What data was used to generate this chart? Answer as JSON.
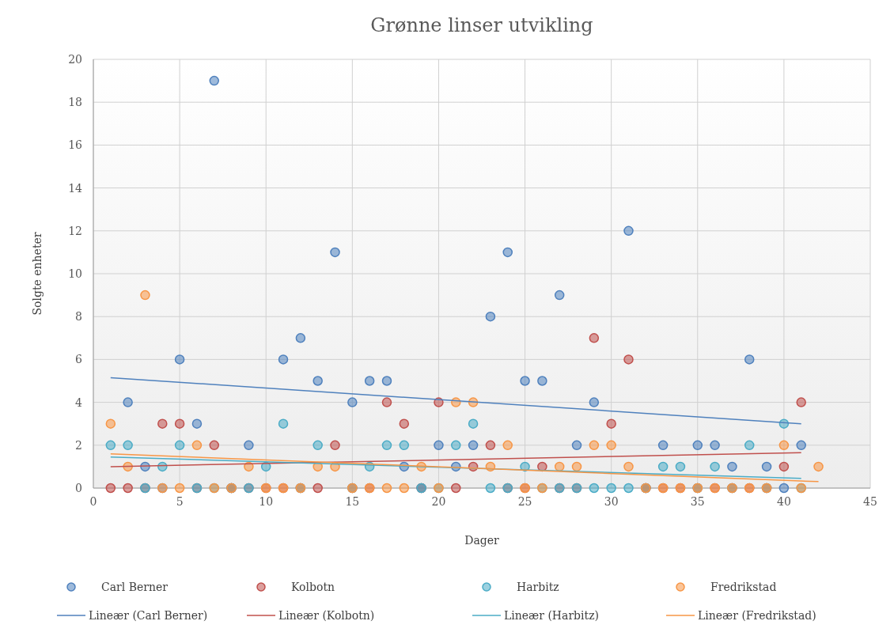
{
  "chart_data": {
    "type": "scatter",
    "title": "Grønne linser utvikling",
    "xlabel": "Dager",
    "ylabel": "Solgte enheter",
    "xlim": [
      0,
      45
    ],
    "xticks": [
      0,
      5,
      10,
      15,
      20,
      25,
      30,
      35,
      40,
      45
    ],
    "ylim": [
      0,
      20
    ],
    "yticks": [
      0,
      2,
      4,
      6,
      8,
      10,
      12,
      14,
      16,
      18,
      20
    ],
    "grid": true,
    "legend": "bottom",
    "marker": "circle",
    "x": [
      1,
      2,
      3,
      4,
      5,
      6,
      7,
      8,
      9,
      10,
      11,
      12,
      13,
      14,
      15,
      16,
      17,
      18,
      19,
      20,
      21,
      22,
      23,
      24,
      25,
      26,
      27,
      28,
      29,
      30,
      31,
      32,
      33,
      34,
      35,
      36,
      37,
      38,
      39,
      40,
      41
    ],
    "series": [
      {
        "name": "Carl Berner",
        "color": "#4f81bd",
        "values": [
          null,
          4,
          1,
          0,
          6,
          3,
          19,
          0,
          2,
          null,
          6,
          7,
          5,
          11,
          4,
          5,
          5,
          1,
          0,
          2,
          1,
          2,
          8,
          11,
          5,
          5,
          9,
          2,
          4,
          null,
          12,
          0,
          2,
          null,
          2,
          2,
          1,
          6,
          1,
          0,
          2
        ]
      },
      {
        "name": "Kolbotn",
        "color": "#c0504d",
        "values": [
          0,
          0,
          0,
          3,
          3,
          0,
          2,
          0,
          0,
          0,
          0,
          0,
          0,
          2,
          0,
          0,
          4,
          3,
          0,
          4,
          0,
          1,
          2,
          0,
          0,
          1,
          0,
          0,
          7,
          3,
          6,
          0,
          0,
          0,
          0,
          0,
          0,
          0,
          0,
          1,
          4
        ]
      },
      {
        "name": "Harbitz",
        "color": "#4bacc6",
        "values": [
          2,
          2,
          0,
          1,
          2,
          0,
          0,
          0,
          0,
          1,
          3,
          0,
          2,
          null,
          0,
          1,
          2,
          2,
          0,
          0,
          2,
          3,
          0,
          0,
          1,
          0,
          0,
          0,
          0,
          0,
          0,
          0,
          1,
          1,
          0,
          1,
          0,
          2,
          0,
          3,
          0
        ]
      },
      {
        "name": "Fredrikstad",
        "color": "#f79646",
        "x": [
          1,
          2,
          3,
          4,
          5,
          6,
          7,
          8,
          9,
          10,
          11,
          12,
          13,
          14,
          15,
          16,
          17,
          18,
          19,
          20,
          21,
          22,
          23,
          24,
          25,
          26,
          27,
          28,
          29,
          30,
          31,
          32,
          33,
          34,
          35,
          36,
          37,
          38,
          39,
          40,
          41,
          42
        ],
        "values": [
          3,
          1,
          9,
          0,
          0,
          2,
          0,
          0,
          1,
          0,
          0,
          0,
          1,
          1,
          0,
          0,
          0,
          0,
          1,
          0,
          4,
          4,
          1,
          2,
          0,
          0,
          1,
          1,
          2,
          2,
          1,
          0,
          0,
          0,
          0,
          0,
          0,
          0,
          0,
          2,
          0,
          1
        ]
      },
      {
        "name": "Lineær (Carl Berner)",
        "type": "line",
        "marker": "none",
        "color": "#4f81bd",
        "x": [
          1,
          41
        ],
        "values": [
          5.15,
          3.0
        ]
      },
      {
        "name": "Lineær (Kolbotn)",
        "type": "line",
        "marker": "none",
        "color": "#c0504d",
        "x": [
          1,
          41
        ],
        "values": [
          1.0,
          1.65
        ]
      },
      {
        "name": "Lineær (Harbitz)",
        "type": "line",
        "marker": "none",
        "color": "#4bacc6",
        "x": [
          1,
          41
        ],
        "values": [
          1.45,
          0.45
        ]
      },
      {
        "name": "Lineær (Fredrikstad)",
        "type": "line",
        "marker": "none",
        "color": "#f79646",
        "x": [
          1,
          42
        ],
        "values": [
          1.6,
          0.3
        ]
      }
    ]
  }
}
